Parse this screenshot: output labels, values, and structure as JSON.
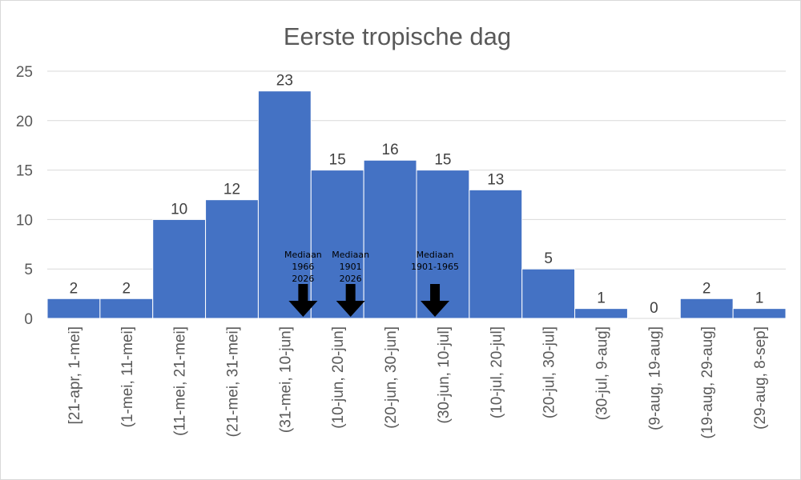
{
  "chart_data": {
    "type": "bar",
    "title": "Eerste tropische dag",
    "xlabel": "",
    "ylabel": "",
    "ylim": [
      0,
      25
    ],
    "yticks": [
      0,
      5,
      10,
      15,
      20,
      25
    ],
    "grid": true,
    "legend": "none",
    "bar_color": "#4472C4",
    "categories": [
      "[21-apr, 1-mei]",
      "(1-mei, 11-mei]",
      "(11-mei, 21-mei]",
      "(21-mei, 31-mei]",
      "(31-mei, 10-jun]",
      "(10-jun, 20-jun]",
      "(20-jun, 30-jun]",
      "(30-jun, 10-jul]",
      "(10-jul, 20-jul]",
      "(20-jul, 30-jul]",
      "(30-jul, 9-aug]",
      "(9-aug, 19-aug]",
      "(19-aug, 29-aug]",
      "(29-aug, 8-sep]"
    ],
    "values": [
      2,
      2,
      10,
      12,
      23,
      15,
      16,
      15,
      13,
      5,
      1,
      0,
      2,
      1
    ],
    "annotations": [
      {
        "lines": [
          "Mediaan",
          "1966",
          "2026"
        ],
        "category_position": 4.85,
        "marker": "down-arrow"
      },
      {
        "lines": [
          "Mediaan",
          "1901",
          "2026"
        ],
        "category_position": 5.75,
        "marker": "down-arrow"
      },
      {
        "lines": [
          "Mediaan",
          "1901-1965"
        ],
        "category_position": 7.35,
        "marker": "down-arrow"
      }
    ]
  }
}
